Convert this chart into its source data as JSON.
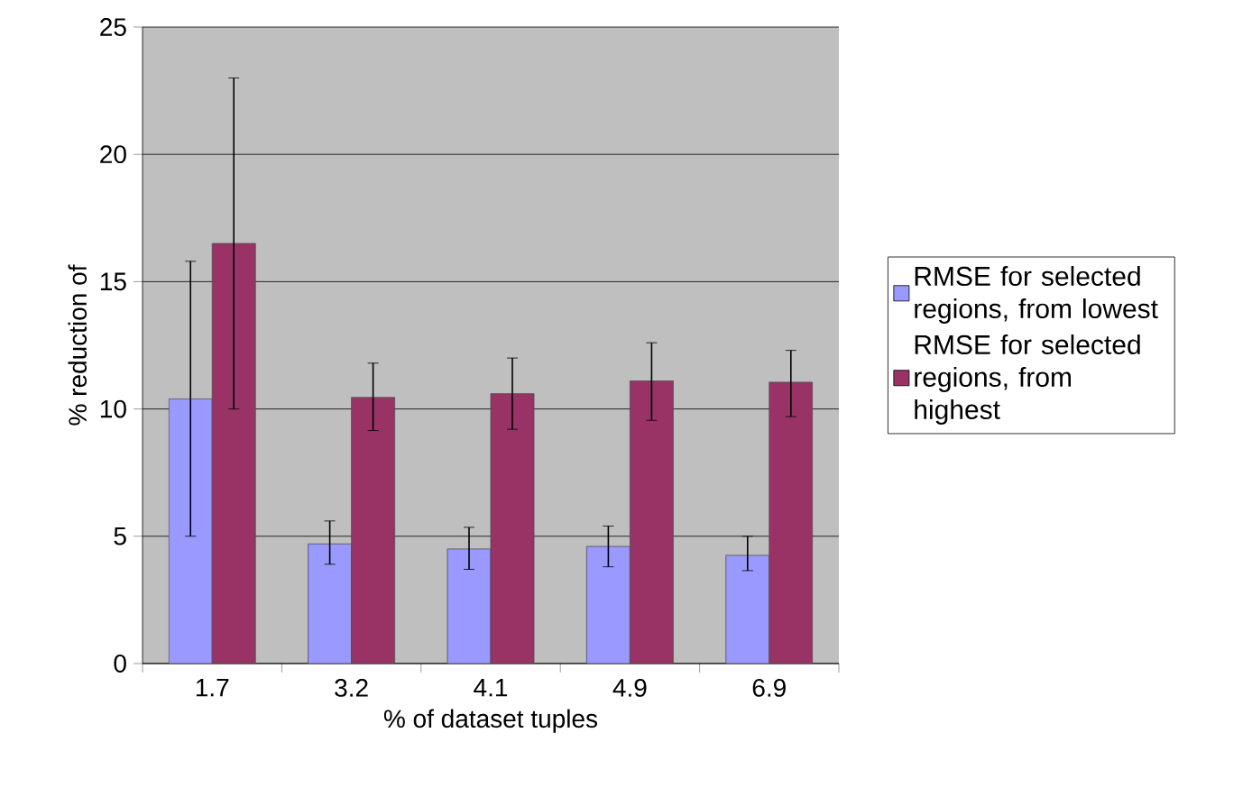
{
  "chart_data": {
    "type": "bar",
    "xlabel": "% of dataset tuples",
    "ylabel": "% reduction of",
    "categories": [
      "1.7",
      "3.2",
      "4.1",
      "4.9",
      "6.9"
    ],
    "series": [
      {
        "name": "RMSE for selected regions, from lowest",
        "color": "#9999ff",
        "values": [
          10.4,
          4.7,
          4.5,
          4.6,
          4.25
        ],
        "errors": [
          [
            5.0,
            15.8
          ],
          [
            3.9,
            5.6
          ],
          [
            3.7,
            5.35
          ],
          [
            3.8,
            5.4
          ],
          [
            3.65,
            5.0
          ]
        ]
      },
      {
        "name": "RMSE for selected regions, from highest",
        "color": "#993366",
        "values": [
          16.5,
          10.45,
          10.6,
          11.1,
          11.05
        ],
        "errors": [
          [
            10.0,
            23.0
          ],
          [
            9.15,
            11.8
          ],
          [
            9.2,
            12.0
          ],
          [
            9.55,
            12.6
          ],
          [
            9.7,
            12.3
          ]
        ]
      }
    ],
    "ylim": [
      0,
      25
    ],
    "yticks": [
      0,
      5,
      10,
      15,
      20,
      25
    ],
    "grid": "y",
    "legend": "right"
  }
}
